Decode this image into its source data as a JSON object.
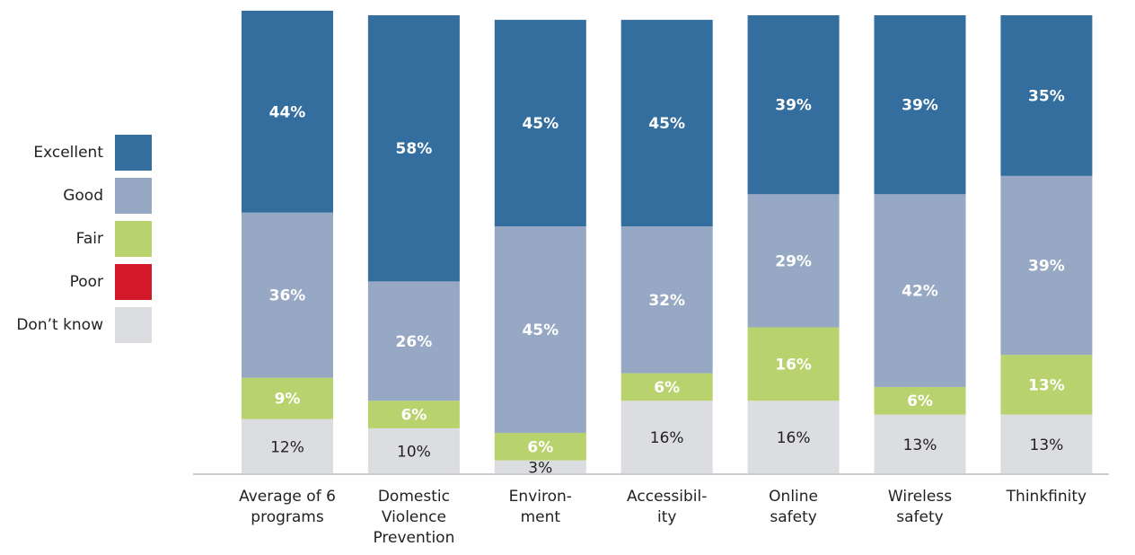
{
  "chart_data": {
    "type": "stacked_bar",
    "categories": [
      "Average of 6\nprograms",
      "Domestic\nViolence\nPrevention",
      "Environ-\nment",
      "Accessibil-\nity",
      "Online\nsafety",
      "Wireless\nsafety",
      "Thinkfinity"
    ],
    "series": [
      {
        "name": "Excellent",
        "color": "#336e9e",
        "values": [
          44,
          58,
          45,
          45,
          39,
          39,
          35
        ],
        "value_labels": [
          "44%",
          "58%",
          "45%",
          "45%",
          "39%",
          "39%",
          "35%"
        ]
      },
      {
        "name": "Good",
        "color": "#97a8c4",
        "values": [
          36,
          26,
          45,
          32,
          29,
          42,
          39
        ],
        "value_labels": [
          "36%",
          "26%",
          "45%",
          "32%",
          "29%",
          "42%",
          "39%"
        ]
      },
      {
        "name": "Fair",
        "color": "#b8d26e",
        "values": [
          9,
          6,
          6,
          6,
          16,
          6,
          13
        ],
        "value_labels": [
          "9%",
          "6%",
          "6%",
          "6%",
          "16%",
          "6%",
          "13%"
        ]
      },
      {
        "name": "Poor",
        "color": "#d3182a",
        "values": [
          0,
          0,
          0,
          0,
          0,
          0,
          0
        ]
      },
      {
        "name": "Don’t know",
        "color": "#dcdde0",
        "values": [
          12,
          10,
          3,
          16,
          16,
          13,
          13
        ],
        "value_labels": [
          "12%",
          "10%",
          "3%",
          "16%",
          "16%",
          "13%",
          "13%"
        ]
      }
    ],
    "legend": "left"
  }
}
